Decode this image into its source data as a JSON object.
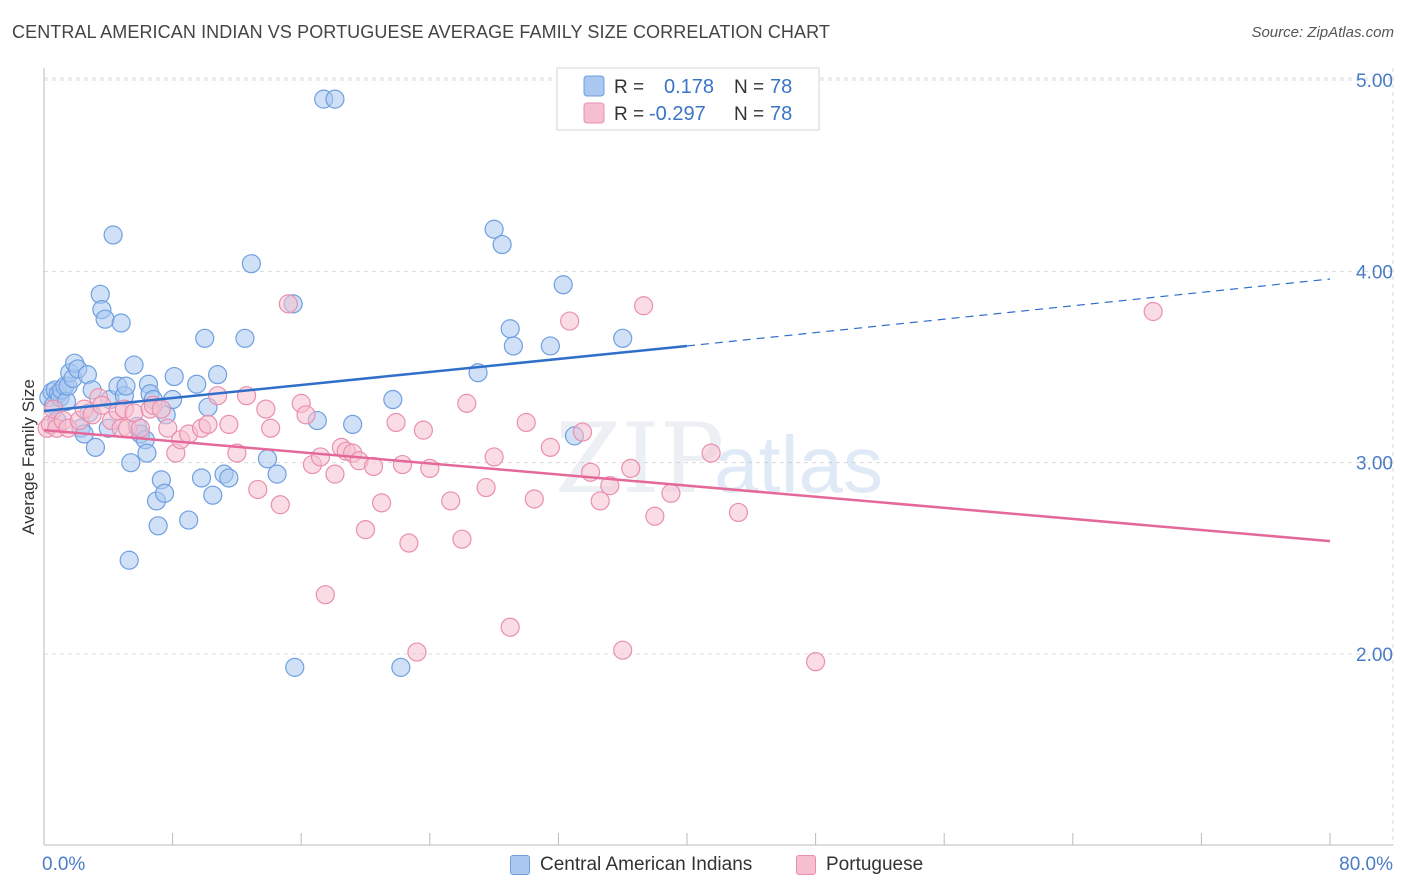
{
  "title": "CENTRAL AMERICAN INDIAN VS PORTUGUESE AVERAGE FAMILY SIZE CORRELATION CHART",
  "source": "Source: ZipAtlas.com",
  "watermark": {
    "zip": "ZIP",
    "atlas": "atlas"
  },
  "colors": {
    "blue_fill": "#aac8f0",
    "blue_stroke": "#6f9fe0",
    "blue_line": "#2f6fc9",
    "pink_fill": "#f6bfd0",
    "pink_stroke": "#ea8faf",
    "pink_line": "#e4699a",
    "grid": "#d9d9d9",
    "tick_text": "#4a7cc7"
  },
  "legend": {
    "rows": [
      {
        "r_label": "R =",
        "r_value": "0.178",
        "n_label": "N =",
        "n_value": "78"
      },
      {
        "r_label": "R =",
        "r_value": "-0.297",
        "n_label": "N =",
        "n_value": "78"
      }
    ]
  },
  "bottom_legend": [
    "Central American Indians",
    "Portuguese"
  ],
  "chart_data": {
    "type": "scatter",
    "xlabel": "",
    "ylabel": "Average Family Size",
    "xlim": [
      0,
      80
    ],
    "ylim": [
      1.2,
      5.15
    ],
    "x_tick_labels": [
      "0.0%",
      "80.0%"
    ],
    "y_ticks": [
      2.0,
      3.0,
      4.0,
      5.0
    ],
    "y_tick_labels": [
      "2.00",
      "3.00",
      "4.00",
      "5.00"
    ],
    "grid": true,
    "legend_position": "top-center",
    "series": [
      {
        "name": "Central American Indians",
        "color": "#6f9fe0",
        "trend": {
          "x": [
            0,
            40
          ],
          "y": [
            3.27,
            3.61
          ],
          "dashed_to_x": 80,
          "dashed_to_y": 3.96
        },
        "points": [
          [
            0.3,
            3.34
          ],
          [
            0.5,
            3.37
          ],
          [
            0.6,
            3.3
          ],
          [
            0.7,
            3.38
          ],
          [
            0.8,
            3.22
          ],
          [
            0.9,
            3.36
          ],
          [
            1.0,
            3.34
          ],
          [
            1.1,
            3.38
          ],
          [
            1.3,
            3.4
          ],
          [
            1.4,
            3.32
          ],
          [
            1.5,
            3.4
          ],
          [
            1.6,
            3.47
          ],
          [
            1.8,
            3.44
          ],
          [
            1.9,
            3.52
          ],
          [
            2.1,
            3.49
          ],
          [
            2.3,
            3.18
          ],
          [
            2.5,
            3.15
          ],
          [
            2.7,
            3.46
          ],
          [
            2.8,
            3.26
          ],
          [
            3.0,
            3.38
          ],
          [
            3.2,
            3.08
          ],
          [
            3.5,
            3.88
          ],
          [
            3.6,
            3.8
          ],
          [
            3.8,
            3.75
          ],
          [
            4.0,
            3.18
          ],
          [
            4.1,
            3.33
          ],
          [
            4.3,
            4.19
          ],
          [
            4.6,
            3.4
          ],
          [
            4.8,
            3.73
          ],
          [
            5.0,
            3.35
          ],
          [
            5.1,
            3.4
          ],
          [
            5.3,
            2.49
          ],
          [
            5.4,
            3.0
          ],
          [
            5.6,
            3.51
          ],
          [
            5.8,
            3.19
          ],
          [
            6.0,
            3.15
          ],
          [
            6.3,
            3.12
          ],
          [
            6.4,
            3.05
          ],
          [
            6.5,
            3.41
          ],
          [
            6.6,
            3.36
          ],
          [
            6.8,
            3.33
          ],
          [
            7.0,
            2.8
          ],
          [
            7.1,
            2.67
          ],
          [
            7.3,
            2.91
          ],
          [
            7.5,
            2.84
          ],
          [
            7.6,
            3.25
          ],
          [
            8.0,
            3.33
          ],
          [
            8.1,
            3.45
          ],
          [
            9.0,
            2.7
          ],
          [
            9.5,
            3.41
          ],
          [
            9.8,
            2.92
          ],
          [
            10.0,
            3.65
          ],
          [
            10.2,
            3.29
          ],
          [
            10.5,
            2.83
          ],
          [
            10.8,
            3.46
          ],
          [
            11.2,
            2.94
          ],
          [
            11.5,
            2.92
          ],
          [
            12.5,
            3.65
          ],
          [
            12.9,
            4.04
          ],
          [
            13.9,
            3.02
          ],
          [
            14.5,
            2.94
          ],
          [
            15.5,
            3.83
          ],
          [
            15.6,
            1.93
          ],
          [
            17.0,
            3.22
          ],
          [
            17.4,
            4.9
          ],
          [
            18.1,
            4.9
          ],
          [
            19.2,
            3.2
          ],
          [
            21.7,
            3.33
          ],
          [
            22.2,
            1.93
          ],
          [
            27.0,
            3.47
          ],
          [
            28.0,
            4.22
          ],
          [
            28.5,
            4.14
          ],
          [
            29.0,
            3.7
          ],
          [
            29.2,
            3.61
          ],
          [
            31.5,
            3.61
          ],
          [
            32.3,
            3.93
          ],
          [
            33.0,
            3.14
          ],
          [
            36.0,
            3.65
          ]
        ]
      },
      {
        "name": "Portuguese",
        "color": "#ea8faf",
        "trend": {
          "x": [
            0,
            80
          ],
          "y": [
            3.17,
            2.59
          ]
        },
        "points": [
          [
            0.2,
            3.18
          ],
          [
            0.4,
            3.2
          ],
          [
            0.6,
            3.28
          ],
          [
            0.8,
            3.18
          ],
          [
            1.2,
            3.22
          ],
          [
            1.5,
            3.18
          ],
          [
            2.2,
            3.22
          ],
          [
            2.5,
            3.28
          ],
          [
            3.0,
            3.25
          ],
          [
            3.4,
            3.34
          ],
          [
            3.6,
            3.3
          ],
          [
            4.2,
            3.22
          ],
          [
            4.6,
            3.27
          ],
          [
            4.8,
            3.18
          ],
          [
            5.0,
            3.28
          ],
          [
            5.2,
            3.18
          ],
          [
            5.6,
            3.26
          ],
          [
            6.0,
            3.18
          ],
          [
            6.6,
            3.28
          ],
          [
            6.8,
            3.3
          ],
          [
            7.3,
            3.28
          ],
          [
            7.7,
            3.18
          ],
          [
            8.2,
            3.05
          ],
          [
            8.5,
            3.12
          ],
          [
            9.0,
            3.15
          ],
          [
            9.8,
            3.18
          ],
          [
            10.2,
            3.2
          ],
          [
            10.8,
            3.35
          ],
          [
            11.5,
            3.2
          ],
          [
            12.0,
            3.05
          ],
          [
            12.6,
            3.35
          ],
          [
            13.3,
            2.86
          ],
          [
            13.8,
            3.28
          ],
          [
            14.1,
            3.18
          ],
          [
            14.7,
            2.78
          ],
          [
            15.2,
            3.83
          ],
          [
            16.0,
            3.31
          ],
          [
            16.3,
            3.25
          ],
          [
            16.7,
            2.99
          ],
          [
            17.2,
            3.03
          ],
          [
            17.5,
            2.31
          ],
          [
            18.1,
            2.94
          ],
          [
            18.5,
            3.08
          ],
          [
            18.8,
            3.06
          ],
          [
            19.2,
            3.05
          ],
          [
            19.6,
            3.01
          ],
          [
            20.0,
            2.65
          ],
          [
            20.5,
            2.98
          ],
          [
            21.0,
            2.79
          ],
          [
            21.9,
            3.21
          ],
          [
            22.3,
            2.99
          ],
          [
            22.7,
            2.58
          ],
          [
            23.2,
            2.01
          ],
          [
            23.6,
            3.17
          ],
          [
            24.0,
            2.97
          ],
          [
            25.3,
            2.8
          ],
          [
            26.0,
            2.6
          ],
          [
            26.3,
            3.31
          ],
          [
            27.5,
            2.87
          ],
          [
            28.0,
            3.03
          ],
          [
            29.0,
            2.14
          ],
          [
            30.0,
            3.21
          ],
          [
            30.5,
            2.81
          ],
          [
            31.5,
            3.08
          ],
          [
            32.7,
            3.74
          ],
          [
            33.5,
            3.16
          ],
          [
            34.0,
            2.95
          ],
          [
            34.6,
            2.8
          ],
          [
            35.2,
            2.88
          ],
          [
            36.0,
            2.02
          ],
          [
            36.5,
            2.97
          ],
          [
            37.3,
            3.82
          ],
          [
            38.0,
            2.72
          ],
          [
            39.0,
            2.84
          ],
          [
            41.5,
            3.05
          ],
          [
            43.2,
            2.74
          ],
          [
            48.0,
            1.96
          ],
          [
            69.0,
            3.79
          ]
        ]
      }
    ]
  }
}
